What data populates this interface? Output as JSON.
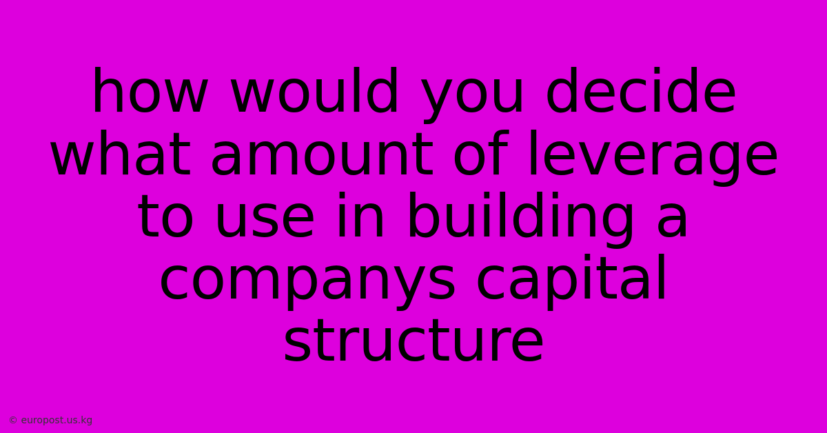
{
  "panel": {
    "background_color": "#dd00dd",
    "text_color": "#000000",
    "main_text": "how would you decide what amount of leverage to use in building a companys capital structure",
    "main_fontsize": 86,
    "attribution": "©  europost.us.kg",
    "attribution_fontsize": 14,
    "attribution_color": "#333333"
  }
}
